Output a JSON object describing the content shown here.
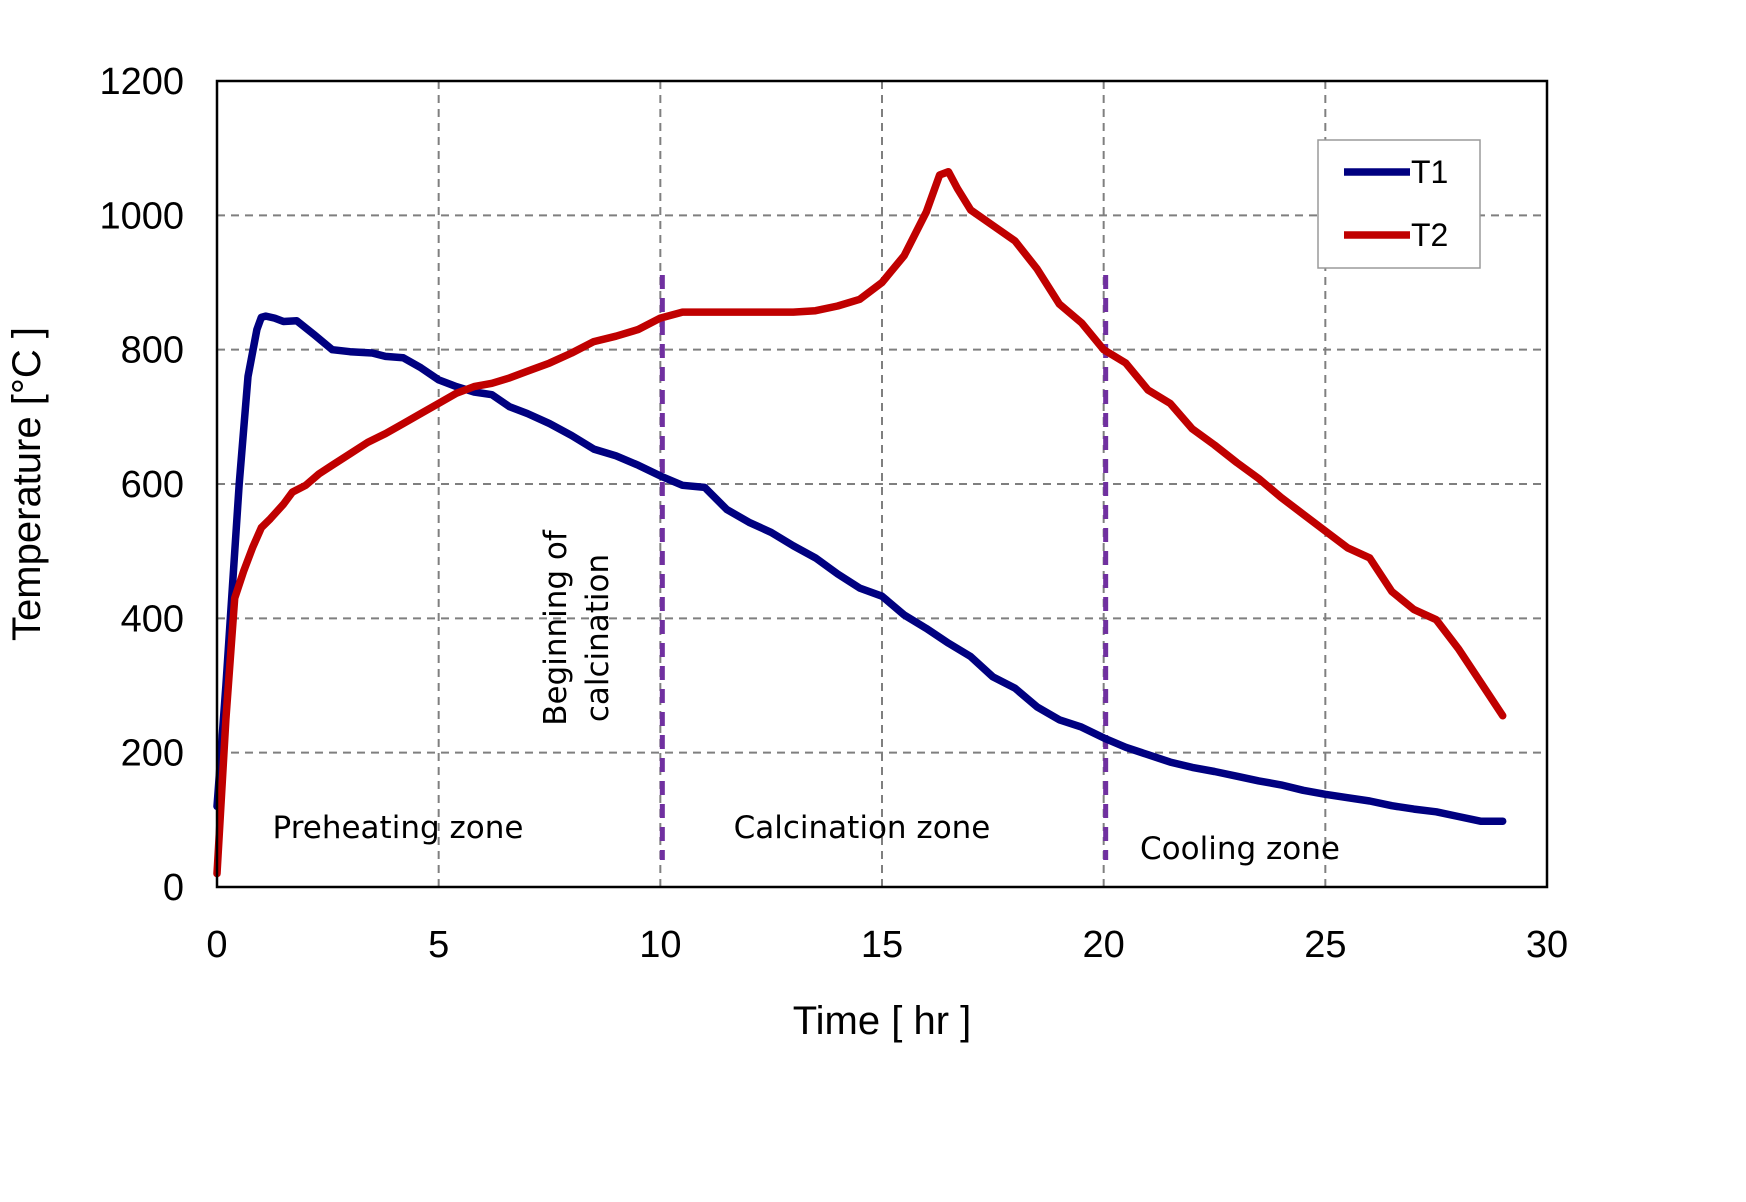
{
  "chart_data": {
    "type": "line",
    "title": "",
    "xlabel": "Time  [ hr ]",
    "ylabel": "Temperature  [°C ]",
    "xlim": [
      0,
      30
    ],
    "ylim": [
      0,
      1200
    ],
    "xticks": [
      0,
      5,
      10,
      15,
      20,
      25,
      30
    ],
    "yticks": [
      0,
      200,
      400,
      600,
      800,
      1000,
      1200
    ],
    "xtick_labels": [
      "0",
      "5",
      "10",
      "15",
      "20",
      "25",
      "30"
    ],
    "ytick_labels": [
      "0",
      "200",
      "400",
      "600",
      "800",
      "1000",
      "1200"
    ],
    "grid": true,
    "legend_position": "top-right",
    "series": [
      {
        "name": "T1",
        "color": "#000080",
        "x": [
          0,
          0.2,
          0.5,
          0.7,
          0.9,
          1.0,
          1.1,
          1.3,
          1.5,
          1.8,
          2.2,
          2.6,
          3.0,
          3.5,
          3.8,
          4.2,
          4.6,
          5.0,
          5.4,
          5.8,
          6.2,
          6.6,
          7.0,
          7.5,
          8.0,
          8.5,
          9.0,
          9.5,
          10.0,
          10.5,
          11.0,
          11.5,
          12.0,
          12.5,
          13.0,
          13.5,
          14.0,
          14.5,
          15.0,
          15.5,
          16.0,
          16.5,
          17.0,
          17.5,
          18.0,
          18.5,
          19.0,
          19.5,
          20.0,
          20.5,
          21.0,
          21.5,
          22.0,
          22.5,
          23.0,
          23.5,
          24.0,
          24.5,
          25.0,
          25.5,
          26.0,
          26.5,
          27.0,
          27.5,
          28.0,
          28.5,
          29.0
        ],
        "values": [
          120,
          300,
          600,
          760,
          830,
          848,
          850,
          847,
          842,
          843,
          822,
          800,
          797,
          795,
          790,
          788,
          773,
          755,
          745,
          737,
          733,
          715,
          705,
          690,
          672,
          652,
          642,
          628,
          612,
          598,
          595,
          562,
          543,
          528,
          508,
          490,
          466,
          445,
          433,
          405,
          385,
          363,
          343,
          313,
          296,
          268,
          249,
          238,
          222,
          208,
          197,
          186,
          178,
          172,
          165,
          158,
          152,
          144,
          138,
          133,
          128,
          121,
          116,
          112,
          105,
          98,
          98
        ]
      },
      {
        "name": "T2",
        "color": "#C00000",
        "x": [
          0,
          0.2,
          0.4,
          0.6,
          0.8,
          1.0,
          1.2,
          1.5,
          1.7,
          2.0,
          2.3,
          2.6,
          3.0,
          3.4,
          3.8,
          4.2,
          4.6,
          5.0,
          5.4,
          5.8,
          6.2,
          6.6,
          7.0,
          7.5,
          8.0,
          8.5,
          9.0,
          9.5,
          10.0,
          10.5,
          11.0,
          12.0,
          13.0,
          13.5,
          14.0,
          14.5,
          15.0,
          15.5,
          16.0,
          16.3,
          16.5,
          16.7,
          17.0,
          17.5,
          18.0,
          18.5,
          19.0,
          19.5,
          20.0,
          20.5,
          21.0,
          21.5,
          22.0,
          22.5,
          23.0,
          23.5,
          24.0,
          24.5,
          25.0,
          25.5,
          26.0,
          26.5,
          27.0,
          27.5,
          28.0,
          28.5,
          29.0
        ],
        "values": [
          20,
          250,
          430,
          470,
          505,
          535,
          548,
          570,
          588,
          598,
          615,
          628,
          645,
          662,
          675,
          690,
          705,
          720,
          735,
          745,
          750,
          758,
          768,
          780,
          795,
          812,
          820,
          830,
          847,
          856,
          856,
          856,
          856,
          858,
          865,
          875,
          900,
          940,
          1005,
          1060,
          1065,
          1040,
          1008,
          985,
          962,
          920,
          868,
          840,
          800,
          780,
          740,
          720,
          682,
          658,
          632,
          608,
          580,
          555,
          530,
          505,
          490,
          440,
          413,
          398,
          355,
          305,
          255
        ]
      }
    ],
    "zone_boundaries": [
      10,
      20
    ],
    "annotations": {
      "preheating": "Preheating zone",
      "calcination": "Calcination zone",
      "cooling": "Cooling zone",
      "beginning_line1": "Beginning of",
      "beginning_line2": "calcination"
    }
  }
}
